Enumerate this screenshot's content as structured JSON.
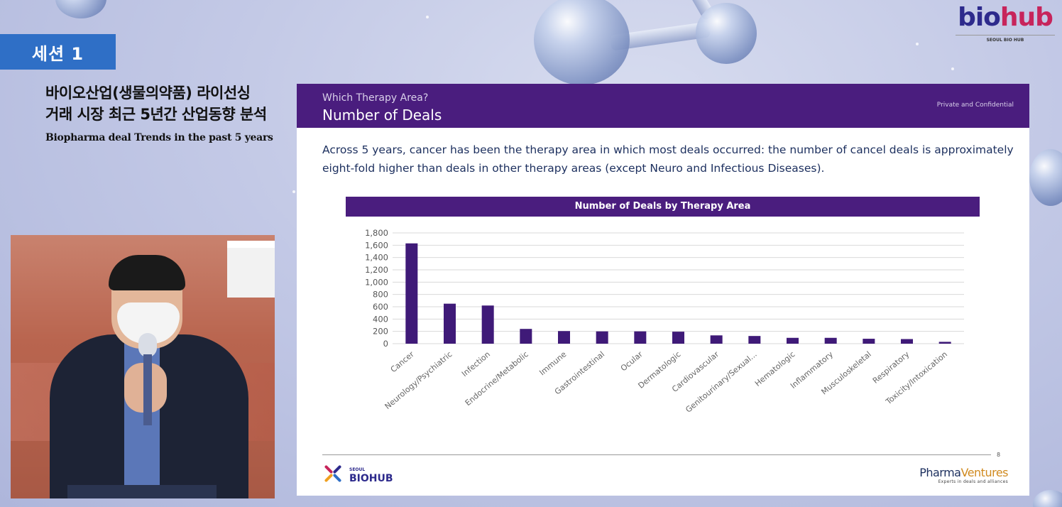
{
  "session": {
    "tag": "세션 1"
  },
  "talk": {
    "title_line1": "바이오산업(생물의약품) 라이선싱",
    "title_line2": "거래 시장 최근 5년간 산업동향 분석",
    "title_en": "Biopharma deal Trends in the past 5 years"
  },
  "brand": {
    "wordmark_a": "bio",
    "wordmark_b": "hub",
    "subtitle": "SEOUL BIO HUB"
  },
  "slide": {
    "eyebrow": "Which Therapy Area?",
    "heading": "Number of Deals",
    "confidential": "Private and Confidential",
    "lede": "Across 5 years, cancer has been the therapy area in which most deals occurred: the number of cancel deals is approximately eight-fold higher than deals in other therapy areas (except Neuro and Infectious Diseases).",
    "page_number": "8",
    "footer_left_small": "SEOUL",
    "footer_left_big": "BIOHUB",
    "footer_right_a": "Pharma",
    "footer_right_b": "Ventures",
    "footer_right_tag": "Experts in deals and alliances"
  },
  "colors": {
    "header_purple": "#4a1d7e",
    "bar": "#3f1a78",
    "session_blue": "#2f6fc6"
  },
  "chart_data": {
    "type": "bar",
    "title": "Number of Deals by Therapy Area",
    "xlabel": "",
    "ylabel": "",
    "ylim": [
      0,
      1800
    ],
    "yticks": [
      0,
      200,
      400,
      600,
      800,
      1000,
      1200,
      1400,
      1600,
      1800
    ],
    "ytick_labels": [
      "0",
      "200",
      "400",
      "600",
      "800",
      "1,000",
      "1,200",
      "1,400",
      "1,600",
      "1,800"
    ],
    "grid": true,
    "categories": [
      "Cancer",
      "Neurology/Psychiatric",
      "Infection",
      "Endocrine/Metabolic",
      "Immune",
      "Gastrointestinal",
      "Ocular",
      "Dermatologic",
      "Cardiovascular",
      "Genitourinary/Sexual...",
      "Hematologic",
      "Inflammatory",
      "Musculoskeletal",
      "Respiratory",
      "Toxicity/Intoxication"
    ],
    "values": [
      1630,
      650,
      620,
      240,
      205,
      200,
      200,
      195,
      135,
      125,
      95,
      95,
      80,
      75,
      30
    ]
  }
}
